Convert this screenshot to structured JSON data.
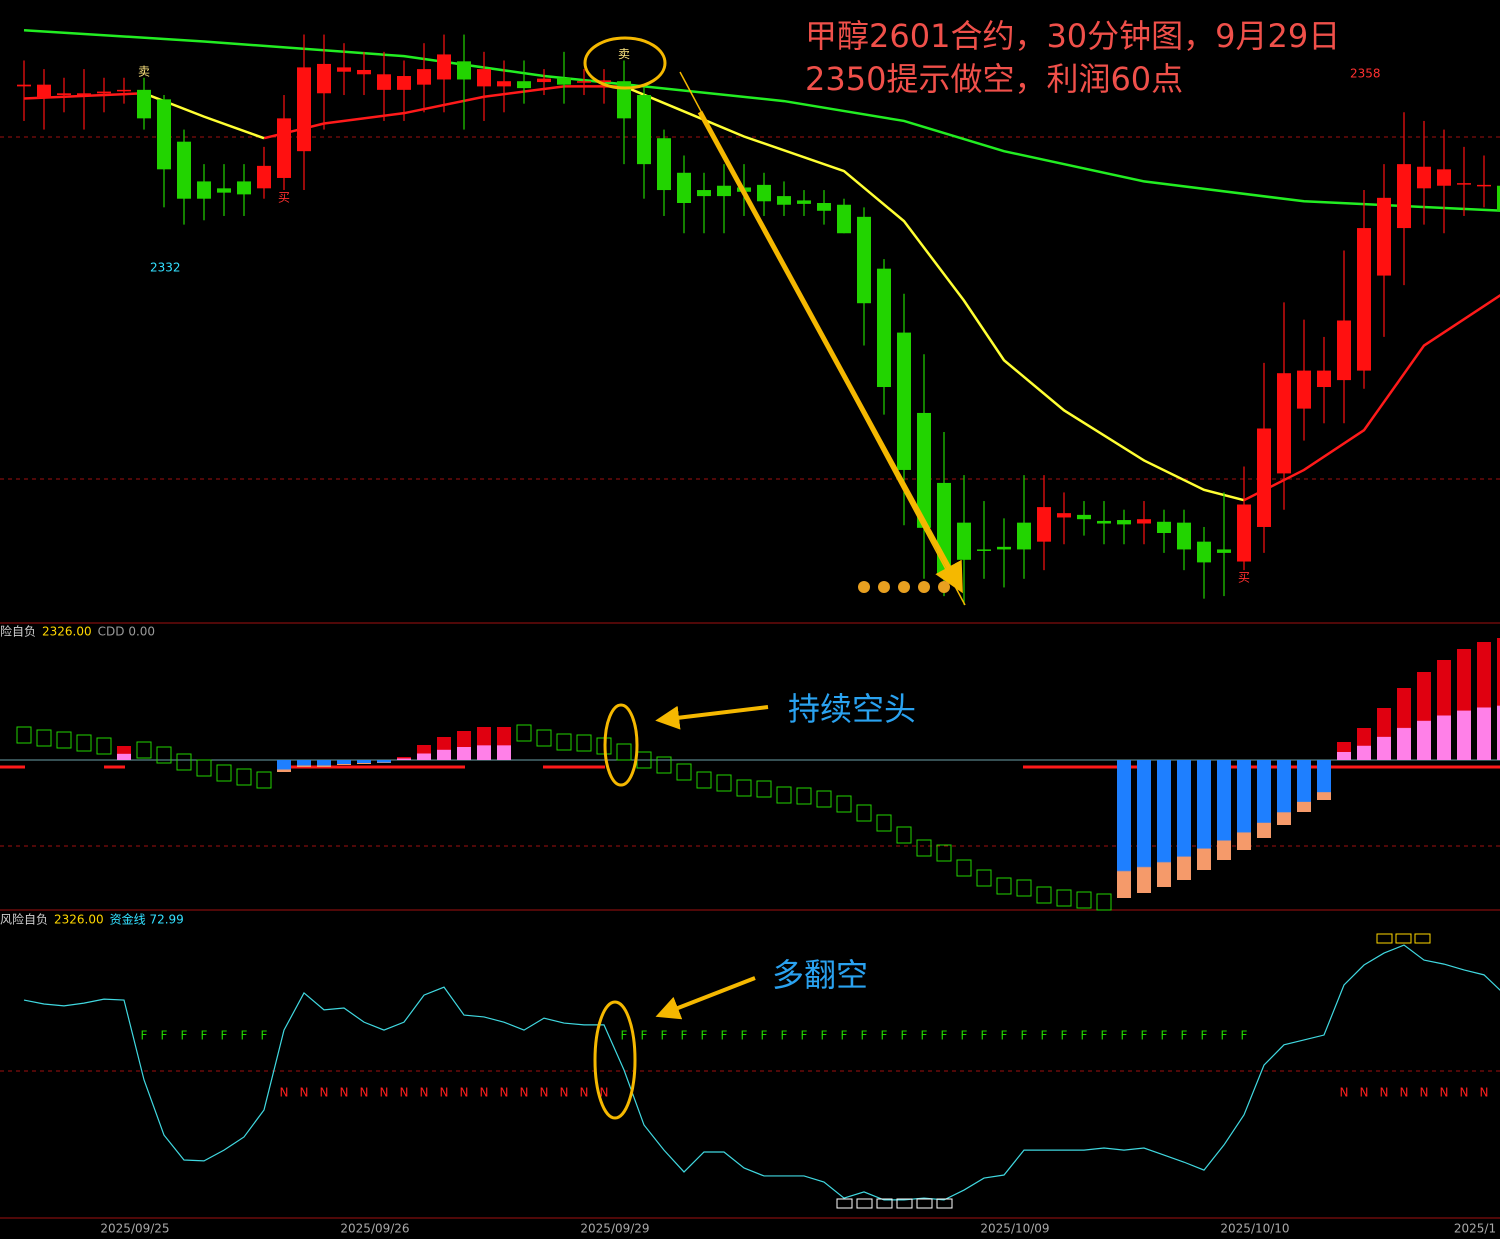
{
  "chart_data": [
    {
      "type": "candlestick",
      "title": "甲醇2601合约，30分钟图，9月29日",
      "subtitle": "2350提示做空，利润60点",
      "categories": [
        null,
        null,
        null,
        null,
        null,
        null,
        "2025/09/25",
        null,
        null,
        null,
        null,
        null,
        null,
        null,
        null,
        null,
        null,
        null,
        "2025/09/26",
        null,
        null,
        null,
        null,
        null,
        null,
        null,
        null,
        null,
        null,
        null,
        "2025/09/29",
        null,
        null,
        null,
        null,
        null,
        null,
        null,
        null,
        null,
        null,
        null,
        null,
        null,
        null,
        null,
        null,
        null,
        null,
        null,
        "2025/10/09",
        null,
        null,
        null,
        null,
        null,
        null,
        null,
        null,
        null,
        null,
        null,
        "2025/10/10",
        null,
        null,
        null,
        null,
        null,
        null,
        null,
        null,
        null,
        null,
        "2025/1",
        null
      ],
      "open": [
        2350,
        2348.6,
        2349,
        2349,
        2349.2,
        2349.5,
        2349.6,
        2348.5,
        2343.6,
        2339,
        2338.2,
        2339,
        2338.2,
        2339.4,
        2342.5,
        2349.2,
        2351.7,
        2351.4,
        2349.6,
        2349.6,
        2350.2,
        2350.8,
        2352.9,
        2350,
        2350,
        2350.6,
        2350.5,
        2351,
        2350.5,
        2350.5,
        2350.6,
        2349,
        2344,
        2340,
        2338,
        2338.5,
        2338.3,
        2338.6,
        2337.3,
        2336.8,
        2336.5,
        2336.3,
        2334.9,
        2328.9,
        2321.5,
        2312.2,
        2304.1,
        2299.5,
        2296.4,
        2296.7,
        2299.5,
        2297.3,
        2300.1,
        2300.4,
        2299.7,
        2299.8,
        2299.4,
        2299.6,
        2299.5,
        2297.3,
        2296.4,
        2295,
        2299,
        2305.2,
        2312.7,
        2315.2,
        2316,
        2317.1,
        2328.1,
        2333.6,
        2338.2,
        2338.5,
        2338.7,
        2338.5,
        2338.5
      ],
      "high": [
        2353,
        2352,
        2351,
        2352,
        2351,
        2351,
        2351,
        2349,
        2345,
        2341,
        2341,
        2341,
        2343,
        2349,
        2356,
        2356,
        2355,
        2354,
        2354,
        2353,
        2355,
        2356,
        2356,
        2354,
        2353,
        2353,
        2352,
        2354,
        2352,
        2352,
        2353,
        2350,
        2345,
        2342,
        2340,
        2341,
        2341,
        2340,
        2339,
        2338,
        2338,
        2337,
        2336,
        2330,
        2326,
        2319,
        2310,
        2305,
        2302,
        2300,
        2305,
        2305,
        2303,
        2302,
        2302,
        2301,
        2302,
        2301,
        2301,
        2299,
        2303,
        2306,
        2318,
        2325,
        2323,
        2321,
        2331,
        2338,
        2341,
        2347,
        2346,
        2345,
        2343,
        2342,
        2340
      ],
      "low": [
        2346,
        2345,
        2347,
        2345,
        2347,
        2348,
        2345,
        2336,
        2334,
        2334.5,
        2335,
        2335,
        2337,
        2338,
        2338,
        2345,
        2349,
        2349,
        2346,
        2346,
        2347,
        2347,
        2345,
        2346,
        2347,
        2348,
        2349,
        2348,
        2349,
        2348,
        2341,
        2337,
        2335,
        2333,
        2333,
        2333,
        2335,
        2335,
        2335,
        2335,
        2334,
        2333,
        2320,
        2312,
        2299.2,
        2293,
        2291,
        2290,
        2293,
        2292,
        2293,
        2294,
        2297,
        2298,
        2297,
        2297,
        2297,
        2296,
        2294,
        2290.7,
        2291,
        2294,
        2296,
        2301,
        2309,
        2311,
        2311,
        2315,
        2321,
        2327,
        2334,
        2333,
        2335,
        2336,
        2334
      ],
      "close": [
        2350.2,
        2350.2,
        2349.2,
        2349.2,
        2349.4,
        2349.6,
        2346.3,
        2340.4,
        2337,
        2337,
        2337.7,
        2337.5,
        2340.8,
        2346.3,
        2352.2,
        2352.6,
        2352.2,
        2351.9,
        2351.4,
        2351.2,
        2352,
        2353.7,
        2350.8,
        2352,
        2350.6,
        2349.8,
        2350.9,
        2350.2,
        2350.6,
        2350.7,
        2346.3,
        2341,
        2338,
        2336.5,
        2337.3,
        2337.3,
        2337.8,
        2336.7,
        2336.3,
        2336.4,
        2335.6,
        2333,
        2324.9,
        2315.2,
        2305.6,
        2298.9,
        2293.5,
        2295.2,
        2296.3,
        2296.4,
        2296.4,
        2301.3,
        2300.6,
        2299.9,
        2299.4,
        2299.3,
        2299.9,
        2298.3,
        2296.4,
        2294.9,
        2296,
        2301.6,
        2310.4,
        2316.8,
        2317.1,
        2317.1,
        2322.9,
        2333.6,
        2337.1,
        2341,
        2340.7,
        2340.4,
        2338.8,
        2338.6,
        2335.6
      ],
      "up_color": "#ff1010",
      "down_color": "#22d400",
      "ylim": [
        2288,
        2360
      ],
      "moving_averages": [
        {
          "color": "#22ee22",
          "x": [
            0,
            9,
            19,
            26,
            31,
            38,
            44,
            49,
            56,
            64,
            74
          ],
          "values": [
            2356.5,
            2355.2,
            2353.5,
            2351.2,
            2350,
            2348.3,
            2346,
            2342.5,
            2339,
            2336.7,
            2335.6
          ]
        },
        {
          "color": "#ff1a1a",
          "x": [
            0,
            6,
            9,
            12,
            15,
            19,
            23,
            27,
            30,
            33,
            61,
            64,
            67,
            70,
            74
          ],
          "values": [
            2348.6,
            2349.2,
            null,
            2344,
            2345.7,
            2346.9,
            2348.8,
            2350,
            2350,
            null,
            2302.1,
            2305.6,
            2310.2,
            2320,
            2326.1
          ]
        },
        {
          "color": "#ffff33",
          "x": [
            6,
            9,
            12,
            15,
            30,
            33,
            36,
            41,
            44,
            47,
            49,
            52,
            56,
            59,
            61
          ],
          "values": [
            2349.2,
            2346.5,
            2344,
            null,
            2350,
            2347.1,
            2344.2,
            2340.2,
            2334.4,
            2325.2,
            2318.3,
            2312.5,
            2306.7,
            2303.3,
            2302.1
          ]
        }
      ],
      "sell_signals": [
        null,
        null,
        null,
        null,
        null,
        null,
        "卖",
        null,
        null,
        null,
        null,
        null,
        null,
        null,
        null,
        null,
        null,
        null,
        null,
        null,
        null,
        null,
        null,
        null,
        null,
        null,
        null,
        null,
        null,
        null,
        "卖",
        null,
        null,
        null,
        null,
        null,
        null,
        null,
        null,
        null,
        null,
        null,
        null,
        null,
        null,
        null,
        null,
        null,
        null,
        null,
        null,
        null,
        null,
        null,
        null,
        null,
        null,
        null,
        null,
        null,
        null,
        null,
        null,
        null,
        null,
        null,
        null,
        null,
        null,
        null,
        null,
        null,
        null,
        null,
        null
      ],
      "buy_signals": [
        null,
        null,
        null,
        null,
        null,
        null,
        null,
        null,
        null,
        null,
        null,
        null,
        null,
        "买",
        null,
        null,
        null,
        null,
        null,
        null,
        null,
        null,
        null,
        null,
        null,
        null,
        null,
        null,
        null,
        null,
        null,
        null,
        null,
        null,
        null,
        null,
        null,
        null,
        null,
        null,
        null,
        null,
        null,
        null,
        null,
        null,
        null,
        null,
        null,
        null,
        null,
        null,
        null,
        null,
        null,
        null,
        null,
        null,
        null,
        null,
        null,
        "买",
        null,
        null,
        null,
        null,
        null,
        null,
        null,
        null,
        null,
        null,
        null,
        null,
        null
      ],
      "high_label": 2358,
      "low_label": 2332
    },
    {
      "type": "indicator-bar",
      "header": [
        {
          "text": "险自负",
          "color": "#d0d0d0"
        },
        {
          "text": "2326.00",
          "color": "#ffd700"
        },
        {
          "text": "CDD 0.00",
          "color": "#9a9a9a"
        }
      ],
      "values": [
        2.5,
        2.2,
        2.0,
        1.7,
        1.4,
        1.4,
        1.0,
        0.5,
        -0.2,
        -0.8,
        -1.3,
        -1.7,
        -2.0,
        -1.2,
        -0.7,
        -0.7,
        -0.5,
        -0.4,
        -0.3,
        0.3,
        1.5,
        2.3,
        2.9,
        3.3,
        3.3,
        2.7,
        2.2,
        1.8,
        1.7,
        1.4,
        0.8,
        0,
        -0.5,
        -1.2,
        -2.0,
        -2.3,
        -2.8,
        -2.9,
        -3.5,
        -3.6,
        -3.9,
        -4.4,
        -5.3,
        -6.3,
        -7.5,
        -8.8,
        -9.3,
        -10.8,
        -11.8,
        -12.6,
        -12.8,
        -13.5,
        -13.8,
        -14.0,
        -14.2,
        -13.8,
        -13.3,
        -12.7,
        -12.0,
        -11.0,
        -10.0,
        -9.0,
        -7.8,
        -6.5,
        -5.2,
        -4.0,
        1.8,
        3.2,
        5.2,
        7.2,
        8.8,
        10.0,
        11.1,
        11.8,
        12.2
      ],
      "ylim": [
        -15,
        13.7
      ],
      "fall_color": "#22d400",
      "annotation": "持续空头"
    },
    {
      "type": "line",
      "header": [
        {
          "text": "风险自负",
          "color": "#d0d0d0"
        },
        {
          "text": "2326.00",
          "color": "#ffd700"
        },
        {
          "text": "资金线 72.99",
          "color": "#33e0ff"
        }
      ],
      "values": [
        71.0,
        69.7,
        69.1,
        70.0,
        71.3,
        71.0,
        45.0,
        27.0,
        18.9,
        18.6,
        22.1,
        26.4,
        35.2,
        61.2,
        73.3,
        67.8,
        68.4,
        63.8,
        61.2,
        63.8,
        72.6,
        75.2,
        66.1,
        65.5,
        63.8,
        61.2,
        65.1,
        63.5,
        62.9,
        62.9,
        48.2,
        30.3,
        22.1,
        15.0,
        21.5,
        21.5,
        16.3,
        13.7,
        13.7,
        13.7,
        11.7,
        6.5,
        8.5,
        5.9,
        5.9,
        6.5,
        5.9,
        9.1,
        13.0,
        14.0,
        22.1,
        22.1,
        22.1,
        22.1,
        22.8,
        22.1,
        22.8,
        20.5,
        18.2,
        15.6,
        23.8,
        33.6,
        49.8,
        56.4,
        58.0,
        59.6,
        75.9,
        82.4,
        86.3,
        88.9,
        84.0,
        82.7,
        80.8,
        79.2,
        72.99
      ],
      "color": "#40d8e0",
      "ylim": [
        0,
        100
      ],
      "upper_signals": [
        null,
        null,
        null,
        null,
        null,
        null,
        "F",
        "F",
        "F",
        "F",
        "F",
        "F",
        "F",
        null,
        null,
        null,
        null,
        null,
        null,
        null,
        null,
        null,
        null,
        null,
        null,
        null,
        null,
        null,
        null,
        null,
        "F",
        "F",
        "F",
        "F",
        "F",
        "F",
        "F",
        "F",
        "F",
        "F",
        "F",
        "F",
        "F",
        "F",
        "F",
        "F",
        "F",
        "F",
        "F",
        "F",
        "F",
        "F",
        "F",
        "F",
        "F",
        "F",
        "F",
        "F",
        "F",
        "F",
        "F",
        "F",
        null,
        null,
        null,
        null,
        null,
        null,
        null,
        null,
        null,
        null,
        null,
        null,
        null
      ],
      "lower_signals": [
        null,
        null,
        null,
        null,
        null,
        null,
        null,
        null,
        null,
        null,
        null,
        null,
        null,
        "N",
        "N",
        "N",
        "N",
        "N",
        "N",
        "N",
        "N",
        "N",
        "N",
        "N",
        "N",
        "N",
        "N",
        "N",
        "N",
        "N",
        null,
        null,
        null,
        null,
        null,
        null,
        null,
        null,
        null,
        null,
        null,
        null,
        null,
        null,
        null,
        null,
        null,
        null,
        null,
        null,
        null,
        null,
        null,
        null,
        null,
        null,
        null,
        null,
        null,
        null,
        null,
        null,
        null,
        null,
        null,
        null,
        "N",
        "N",
        "N",
        "N",
        "N",
        "N",
        "N",
        "N",
        null
      ],
      "upper_color": "#22d400",
      "lower_color": "#ff2020",
      "annotation": "多翻空"
    }
  ]
}
